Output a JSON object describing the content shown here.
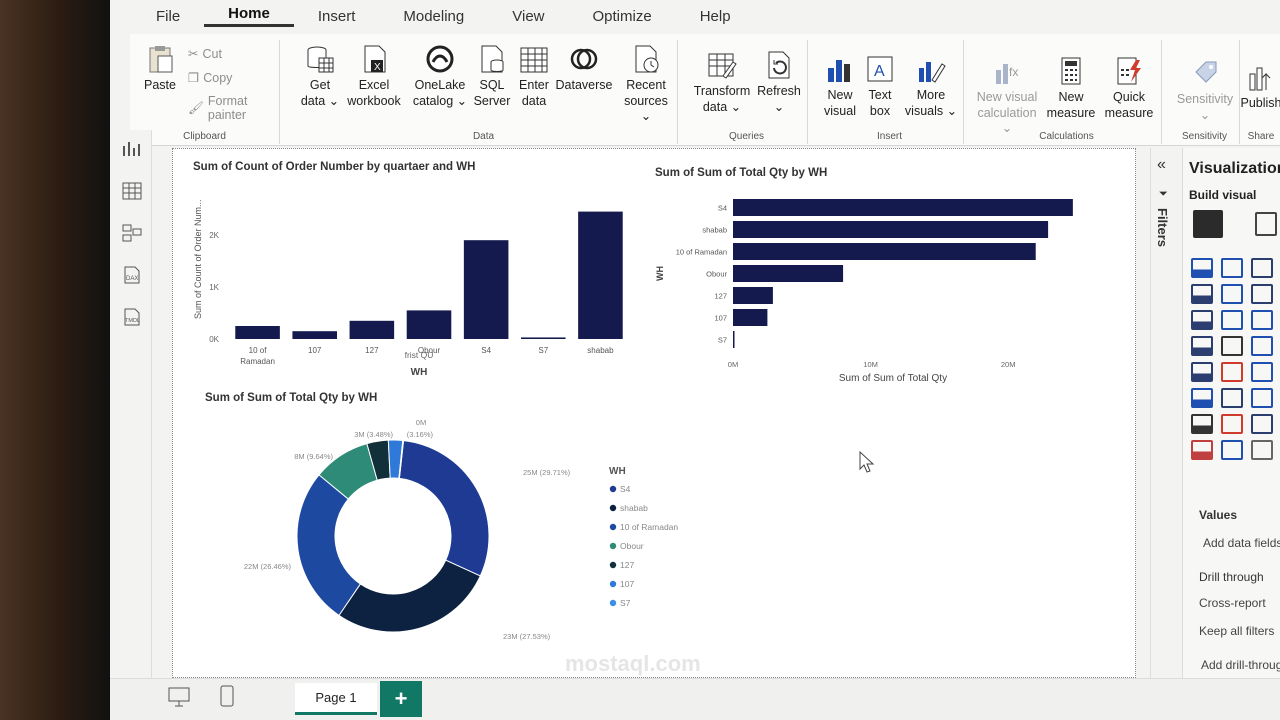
{
  "menu": [
    "File",
    "Home",
    "Insert",
    "Modeling",
    "View",
    "Optimize",
    "Help"
  ],
  "menu_active": "Home",
  "ribbon": {
    "clipboard": {
      "paste": "Paste",
      "cut": "Cut",
      "copy": "Copy",
      "format_painter": "Format painter",
      "label": "Clipboard"
    },
    "data": {
      "get_data": [
        "Get",
        "data ⌄"
      ],
      "excel": [
        "Excel",
        "workbook"
      ],
      "onelake": [
        "OneLake",
        "catalog ⌄"
      ],
      "sql": [
        "SQL",
        "Server"
      ],
      "enter": [
        "Enter",
        "data"
      ],
      "dataverse": "Dataverse",
      "recent": [
        "Recent",
        "sources ⌄"
      ],
      "label": "Data"
    },
    "queries": {
      "transform": [
        "Transform",
        "data ⌄"
      ],
      "refresh": [
        "Refresh",
        "⌄"
      ],
      "label": "Queries"
    },
    "insert": {
      "new_visual": [
        "New",
        "visual"
      ],
      "text_box": [
        "Text",
        "box"
      ],
      "more_visuals": [
        "More",
        "visuals ⌄"
      ],
      "label": "Insert"
    },
    "calculations": {
      "new_visual_calc": [
        "New visual",
        "calculation ⌄"
      ],
      "new_measure": [
        "New",
        "measure"
      ],
      "quick_measure": [
        "Quick",
        "measure"
      ],
      "label": "Calculations"
    },
    "sensitivity": {
      "btn": [
        "Sensitivity",
        "⌄"
      ],
      "label": "Sensitivity"
    },
    "share": {
      "publish": "Publish",
      "label": "Share"
    }
  },
  "visuals": {
    "bar_chart": {
      "title": "Sum of Count of Order Number by quartaer and WH",
      "ylabel": "Sum of Count of Order Num...",
      "xlabel": "WH",
      "subcaption": "frist QU"
    },
    "hbar_chart": {
      "title": "Sum of Sum of Total Qty by WH",
      "ylabel": "WH",
      "xlabel": "Sum of Sum of Total Qty"
    },
    "donut_chart": {
      "title": "Sum of Sum of Total Qty by WH",
      "legend_title": "WH"
    }
  },
  "chart_data": [
    {
      "type": "bar",
      "title": "Sum of Count of Order Number by quartaer and WH",
      "xlabel": "WH",
      "ylabel": "Sum of Count of Order Num...",
      "categories": [
        "10 of Ramadan",
        "107",
        "127",
        "Obour",
        "S4",
        "S7",
        "shabab"
      ],
      "values": [
        250,
        150,
        350,
        550,
        1900,
        30,
        2450
      ],
      "yticks": [
        "0K",
        "1K",
        "2K"
      ],
      "ylim": [
        0,
        2500
      ],
      "color": "#141a4e"
    },
    {
      "type": "bar",
      "orientation": "horizontal",
      "title": "Sum of Sum of Total Qty by WH",
      "xlabel": "Sum of Sum of Total Qty",
      "ylabel": "WH",
      "categories": [
        "S4",
        "shabab",
        "10 of Ramadan",
        "Obour",
        "127",
        "107",
        "S7"
      ],
      "values": [
        24700000,
        22900000,
        22000000,
        8000000,
        2900000,
        2500000,
        100000
      ],
      "xticks": [
        "0M",
        "10M",
        "20M"
      ],
      "xlim": [
        0,
        25000000
      ],
      "color": "#141a4e"
    },
    {
      "type": "pie",
      "donut": true,
      "title": "Sum of Sum of Total Qty by WH",
      "legend_title": "WH",
      "legend": "right",
      "slices": [
        {
          "name": "S4",
          "value": 25,
          "label": "25M (29.71%)",
          "color": "#1f3a93"
        },
        {
          "name": "shabab",
          "value": 23,
          "label": "23M (27.53%)",
          "color": "#0d2240"
        },
        {
          "name": "10 of Ramadan",
          "value": 22,
          "label": "22M (26.46%)",
          "color": "#1d4aa0"
        },
        {
          "name": "Obour",
          "value": 8,
          "label": "8M (9.64%)",
          "color": "#2e8b78"
        },
        {
          "name": "127",
          "value": 3,
          "label": "3M (3.48%)",
          "color": "#12303a"
        },
        {
          "name": "107",
          "value": 2,
          "label": "(3.16%)",
          "color": "#2f7ad9"
        },
        {
          "name": "S7",
          "value": 0.1,
          "label": "0M",
          "color": "#3a8fe8"
        }
      ]
    }
  ],
  "filters_label": "Filters",
  "viz_pane": {
    "title": "Visualizations",
    "build": "Build visual",
    "values": "Values",
    "add_fields": "Add data fields here",
    "drill": "Drill through",
    "cross": "Cross-report",
    "keep": "Keep all filters",
    "add_drill": "Add drill-through fields here"
  },
  "pages": {
    "tab": "Page 1",
    "add": "+"
  },
  "watermark": "mostaql.com"
}
